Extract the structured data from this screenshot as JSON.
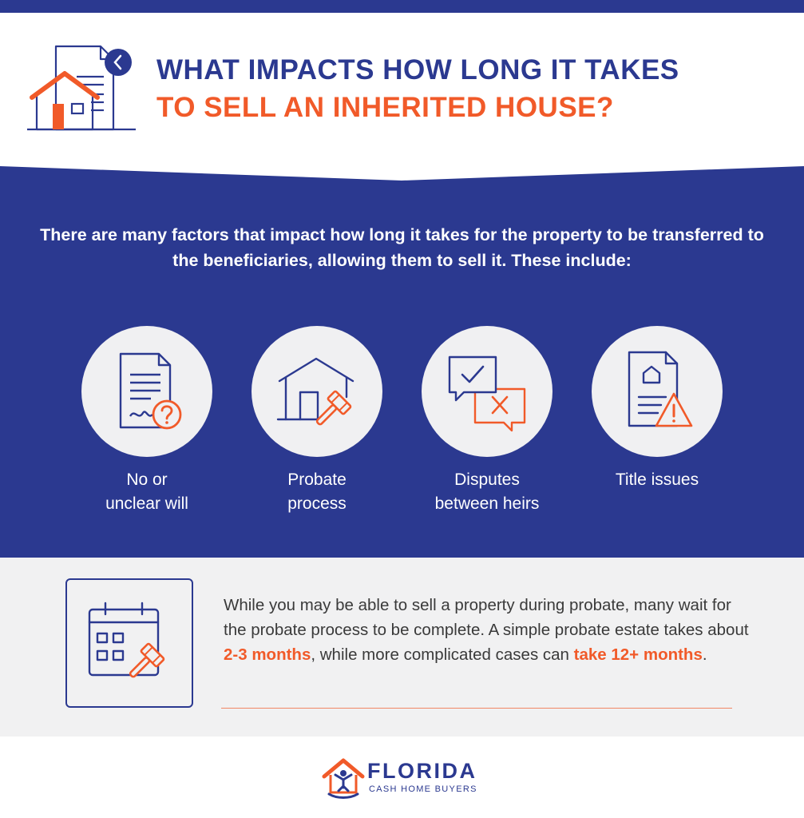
{
  "title": {
    "line1": "WHAT IMPACTS HOW LONG IT TAKES",
    "line2": "TO SELL AN INHERITED HOUSE?"
  },
  "intro": "There are many factors that impact how long it takes for the property to be transferred to the beneficiaries, allowing them to sell it. These include:",
  "factors": [
    {
      "icon": "document-question-icon",
      "label_line1": "No or",
      "label_line2": "unclear will"
    },
    {
      "icon": "house-gavel-icon",
      "label_line1": "Probate",
      "label_line2": "process"
    },
    {
      "icon": "speech-bubbles-check-x-icon",
      "label_line1": "Disputes",
      "label_line2": "between heirs"
    },
    {
      "icon": "document-warning-icon",
      "label_line1": "Title issues",
      "label_line2": ""
    }
  ],
  "note": {
    "text1": "While you may be able to sell a property during probate, many wait for the probate process to be complete. A simple probate estate takes about ",
    "highlight1": "2-3 months",
    "text2": ", while more complicated cases can ",
    "highlight2": "take 12+ months",
    "text3": "."
  },
  "logo": {
    "name": "FLORIDA",
    "tagline": "CASH HOME BUYERS"
  },
  "colors": {
    "navy": "#2b3990",
    "orange": "#f15a29",
    "light_gray": "#f1f1f2"
  }
}
